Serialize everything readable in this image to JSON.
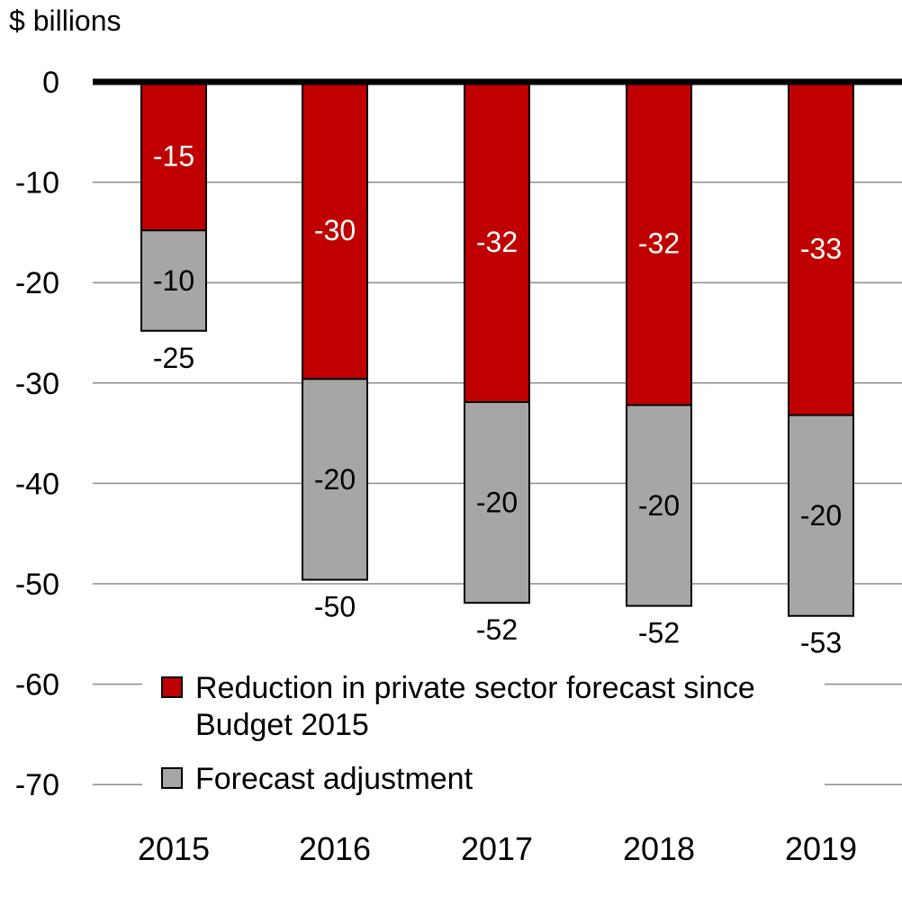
{
  "chart_data": {
    "type": "bar",
    "stacked": true,
    "ylabel": "$ billions",
    "ylim": [
      -70,
      0
    ],
    "yticks": [
      0,
      -10,
      -20,
      -30,
      -40,
      -50,
      -60,
      -70
    ],
    "grid": true,
    "legend_position": "bottom-center",
    "categories": [
      "2015",
      "2016",
      "2017",
      "2018",
      "2019"
    ],
    "series": [
      {
        "name": "Reduction in private sector forecast since Budget 2015",
        "legend_lines": [
          "Reduction in private sector forecast since",
          "Budget 2015"
        ],
        "color": "#C00000",
        "label_color": "#ffffff",
        "values": [
          -14.8,
          -29.6,
          -31.9,
          -32.2,
          -33.2
        ],
        "labels": [
          "-15",
          "-30",
          "-32",
          "-32",
          "-33"
        ]
      },
      {
        "name": "Forecast adjustment",
        "legend_lines": [
          "Forecast adjustment"
        ],
        "color": "#A6A6A6",
        "label_color": "#000000",
        "values": [
          -10,
          -20,
          -20,
          -20,
          -20
        ],
        "labels": [
          "-10",
          "-20",
          "-20",
          "-20",
          "-20"
        ]
      }
    ],
    "totals": [
      -24.8,
      -49.6,
      -51.9,
      -52.2,
      -53.2
    ],
    "total_labels": [
      "-25",
      "-50",
      "-52",
      "-52",
      "-53"
    ]
  }
}
